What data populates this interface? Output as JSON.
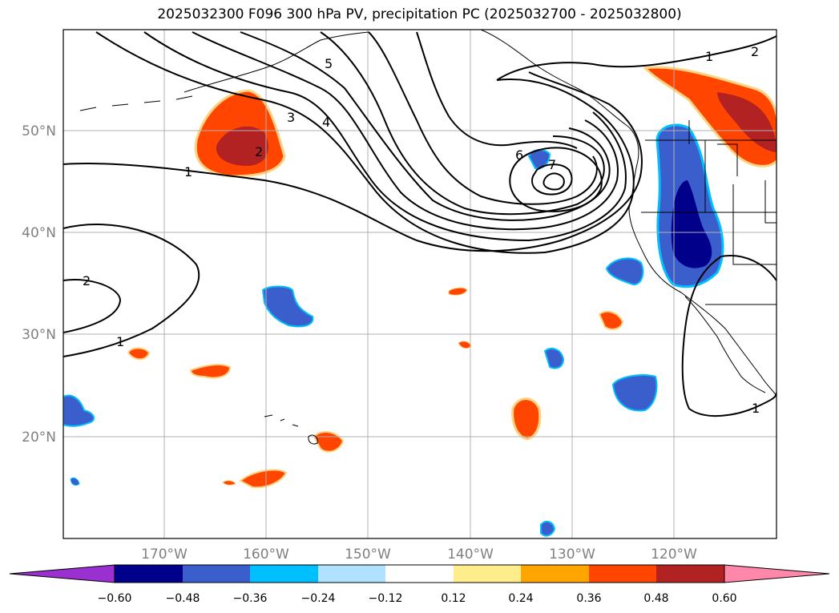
{
  "title": "2025032300 F096 300 hPa PV, precipitation PC (2025032700 - 2025032800)",
  "colors": {
    "land_outline": "#000000",
    "gridline": "#b0b0b0",
    "contour": "#000000",
    "axis_label": "#808080"
  },
  "chart_data": {
    "type": "heatmap",
    "title": "2025032300 F096 300 hPa PV, precipitation PC (2025032700 - 2025032800)",
    "xlabel": "",
    "ylabel": "",
    "xlim": [
      -180,
      -110
    ],
    "ylim": [
      10,
      60
    ],
    "grid": true,
    "lon_ticks": [
      "170°W",
      "160°W",
      "150°W",
      "140°W",
      "130°W",
      "120°W"
    ],
    "lon_tick_values": [
      -170,
      -160,
      -150,
      -140,
      -130,
      -120
    ],
    "lat_ticks": [
      "50°N",
      "40°N",
      "30°N",
      "20°N"
    ],
    "lat_tick_values": [
      50,
      40,
      30,
      20
    ],
    "colorbar": {
      "levels": [
        "−0.60",
        "−0.48",
        "−0.36",
        "−0.24",
        "−0.12",
        "0.12",
        "0.24",
        "0.36",
        "0.48",
        "0.60"
      ],
      "colors": [
        "#9b30d0",
        "#00008b",
        "#3a5fcd",
        "#00bfff",
        "#b0e2ff",
        "#ffffff",
        "#ffec8b",
        "#ffa500",
        "#ff4500",
        "#b22222",
        "#ff88aa"
      ],
      "extend": "both"
    },
    "pv_contour_labels": [
      "1",
      "2",
      "3",
      "4",
      "5",
      "6",
      "7",
      "1",
      "2",
      "1",
      "2",
      "1"
    ]
  }
}
